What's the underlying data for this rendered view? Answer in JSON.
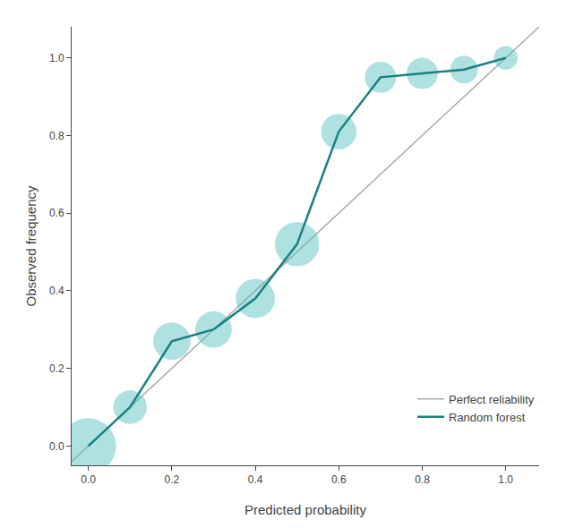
{
  "chart_data": {
    "type": "line",
    "xlabel": "Predicted probability",
    "ylabel": "Observed frequency",
    "xlim": [
      -0.04,
      1.08
    ],
    "ylim": [
      -0.05,
      1.08
    ],
    "xticks": [
      {
        "value": 0.0,
        "label": "0.0"
      },
      0.2,
      0.4,
      0.6,
      0.8,
      {
        "value": 1.0,
        "label": "1.0"
      }
    ],
    "yticks": [
      {
        "value": 0.0,
        "label": "0.0"
      },
      0.2,
      0.4,
      0.6,
      0.8,
      {
        "value": 1.0,
        "label": "1.0"
      }
    ],
    "grid": false,
    "legend": "lower right",
    "series": [
      {
        "name": "Perfect reliability",
        "type": "line",
        "color": "#aaaaaa",
        "x": [
          -0.04,
          1.08
        ],
        "values": [
          -0.04,
          1.08
        ]
      },
      {
        "type": "scatter",
        "color": "#4dbdbd",
        "x": [
          0.0,
          0.1,
          0.2,
          0.3,
          0.4,
          0.5,
          0.6,
          0.7,
          0.8,
          0.9,
          1.0
        ],
        "values": [
          0.0,
          0.1,
          0.27,
          0.3,
          0.38,
          0.52,
          0.81,
          0.95,
          0.96,
          0.97,
          1.0
        ],
        "sizes": [
          2200,
          800,
          1000,
          950,
          1100,
          1400,
          900,
          700,
          700,
          550,
          400
        ]
      },
      {
        "name": "Random forest",
        "type": "line",
        "color": "#1a8080",
        "x": [
          0.0,
          0.1,
          0.2,
          0.3,
          0.4,
          0.5,
          0.6,
          0.7,
          0.8,
          0.9,
          1.0
        ],
        "values": [
          0.0,
          0.1,
          0.27,
          0.3,
          0.38,
          0.52,
          0.81,
          0.95,
          0.96,
          0.97,
          1.0
        ]
      }
    ]
  }
}
